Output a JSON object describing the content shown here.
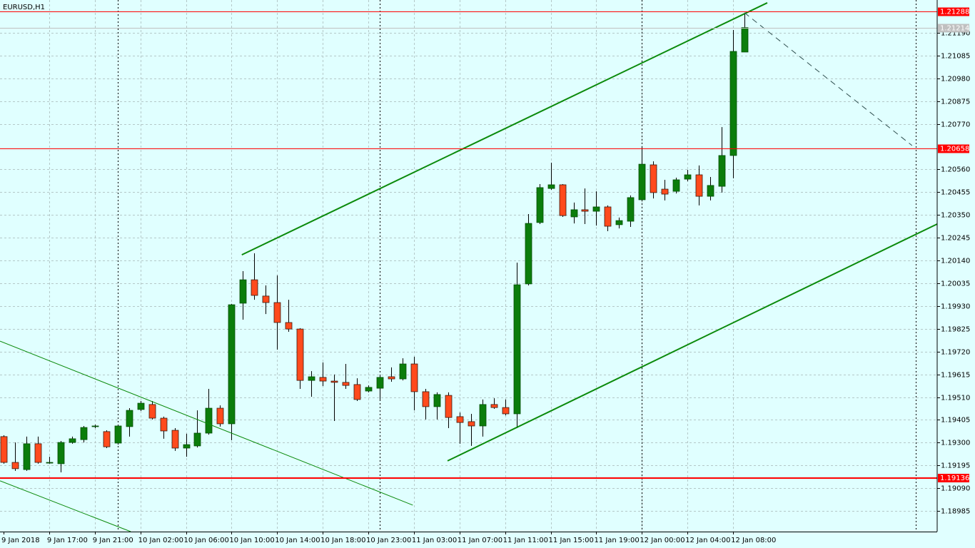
{
  "chart_data": {
    "type": "candlestick",
    "title": "EURUSD,H1",
    "categories": [
      "9 Jan 2018",
      null,
      null,
      null,
      "9 Jan 17:00",
      null,
      null,
      null,
      "9 Jan 21:00",
      null,
      null,
      null,
      "10 Jan 02:00",
      null,
      null,
      null,
      "10 Jan 06:00",
      null,
      null,
      null,
      "10 Jan 10:00",
      null,
      null,
      null,
      "10 Jan 14:00",
      null,
      null,
      null,
      "10 Jan 18:00",
      null,
      null,
      null,
      "10 Jan 23:00",
      null,
      null,
      null,
      "11 Jan 03:00",
      null,
      null,
      null,
      "11 Jan 07:00",
      null,
      null,
      null,
      "11 Jan 11:00",
      null,
      null,
      null,
      "11 Jan 15:00",
      null,
      null,
      null,
      "11 Jan 19:00",
      null,
      null,
      null,
      "12 Jan 00:00",
      null,
      null,
      null,
      "12 Jan 04:00",
      null,
      null,
      null,
      "12 Jan 08:00",
      null
    ],
    "open": [
      1.19328,
      1.19209,
      1.19176,
      1.19295,
      1.19209,
      1.19203,
      1.19301,
      1.19314,
      1.19374,
      1.19351,
      1.19298,
      1.19374,
      1.19453,
      1.19476,
      1.19413,
      1.19357,
      1.19275,
      1.19285,
      1.19344,
      1.19459,
      1.19387,
      1.19943,
      1.20051,
      1.19976,
      1.19946,
      1.19854,
      1.19824,
      1.19587,
      1.19601,
      1.19584,
      1.19578,
      1.19568,
      1.19538,
      1.19551,
      1.19604,
      1.19594,
      1.19663,
      1.19535,
      1.19466,
      1.19518,
      1.1942,
      1.19397,
      1.19377,
      1.19476,
      1.19462,
      1.19433,
      1.20032,
      1.20315,
      1.20472,
      1.20489,
      1.20341,
      1.20374,
      1.20367,
      1.20387,
      1.20305,
      1.20321,
      1.2042,
      1.20581,
      1.20469,
      1.20459,
      1.20515,
      1.20535,
      1.20436,
      1.20482,
      1.20624,
      1.21101
    ],
    "high": [
      1.19334,
      1.19301,
      1.19328,
      1.19328,
      1.19235,
      1.19308,
      1.19328,
      1.19377,
      1.19383,
      1.19357,
      1.19383,
      1.19459,
      1.19492,
      1.19492,
      1.1942,
      1.19367,
      1.19341,
      1.19449,
      1.19548,
      1.19472,
      1.1994,
      1.20091,
      1.20173,
      1.20025,
      1.20071,
      1.19959,
      1.19828,
      1.1963,
      1.1967,
      1.19614,
      1.19663,
      1.19597,
      1.19564,
      1.19614,
      1.19647,
      1.19689,
      1.19696,
      1.19548,
      1.19532,
      1.19532,
      1.19439,
      1.19433,
      1.19499,
      1.19505,
      1.19499,
      1.2013,
      1.20354,
      1.20492,
      1.20591,
      1.20492,
      1.20407,
      1.20472,
      1.20459,
      1.20394,
      1.20338,
      1.2044,
      1.20667,
      1.20597,
      1.20512,
      1.20522,
      1.20558,
      1.20578,
      1.20525,
      1.20755,
      1.21203,
      1.21282
    ],
    "low": [
      1.19203,
      1.1917,
      1.1917,
      1.19203,
      1.19203,
      1.19163,
      1.19295,
      1.19301,
      1.19367,
      1.19275,
      1.19291,
      1.19328,
      1.19446,
      1.19407,
      1.19318,
      1.19262,
      1.19235,
      1.19278,
      1.19337,
      1.19374,
      1.19311,
      1.19867,
      1.19959,
      1.19893,
      1.19729,
      1.19811,
      1.19548,
      1.19512,
      1.19561,
      1.194,
      1.19548,
      1.19492,
      1.19532,
      1.19499,
      1.19581,
      1.19587,
      1.19449,
      1.19407,
      1.19407,
      1.19367,
      1.19295,
      1.19285,
      1.19328,
      1.19456,
      1.19426,
      1.19367,
      1.20025,
      1.20308,
      1.20466,
      1.20341,
      1.20311,
      1.20308,
      1.20301,
      1.20275,
      1.20288,
      1.20295,
      1.20413,
      1.20426,
      1.20417,
      1.20449,
      1.20505,
      1.20394,
      1.20417,
      1.20453,
      1.20519,
      1.21101
    ],
    "close": [
      1.19209,
      1.1918,
      1.19295,
      1.19209,
      1.19209,
      1.19301,
      1.19318,
      1.1937,
      1.19377,
      1.19281,
      1.19377,
      1.19449,
      1.19482,
      1.19413,
      1.19354,
      1.19275,
      1.19291,
      1.19344,
      1.19459,
      1.19387,
      1.19936,
      1.20051,
      1.19979,
      1.19946,
      1.19854,
      1.19824,
      1.19587,
      1.19604,
      1.19584,
      1.19578,
      1.19564,
      1.19499,
      1.19555,
      1.19601,
      1.19594,
      1.19663,
      1.19535,
      1.19466,
      1.19522,
      1.19416,
      1.19393,
      1.19377,
      1.19476,
      1.19462,
      1.19433,
      1.20028,
      1.20311,
      1.20476,
      1.20489,
      1.20347,
      1.20374,
      1.20367,
      1.20387,
      1.20298,
      1.20324,
      1.2043,
      1.20584,
      1.20453,
      1.20446,
      1.20512,
      1.20535,
      1.20436,
      1.20486,
      1.20624,
      1.21104,
      1.21214
    ],
    "up_color": "#0b7d0b",
    "down_color": "#ff4a1c",
    "ylim": [
      1.1889,
      1.21341
    ],
    "yticks": [
      {
        "value": 1.2119,
        "label": "1.21190"
      },
      1.21085,
      {
        "value": 1.2098,
        "label": "1.20980"
      },
      1.20875,
      {
        "value": 1.2077,
        "label": "1.20770"
      },
      {
        "value": 1.2056,
        "label": "1.20560"
      },
      1.20455,
      {
        "value": 1.2035,
        "label": "1.20350"
      },
      1.20245,
      {
        "value": 1.2014,
        "label": "1.20140"
      },
      1.20035,
      {
        "value": 1.1993,
        "label": "1.19930"
      },
      1.19825,
      {
        "value": 1.1972,
        "label": "1.19720"
      },
      1.19615,
      {
        "value": 1.1951,
        "label": "1.19510"
      },
      1.19405,
      {
        "value": 1.193,
        "label": "1.19300"
      },
      1.19195,
      {
        "value": 1.1909,
        "label": "1.19090"
      },
      1.18985
    ],
    "grid": true,
    "hlines": [
      {
        "value": 1.21288,
        "color": "#ff0000",
        "width": 1
      },
      {
        "value": 1.21214,
        "color": "#c0c0c0",
        "width": 1
      },
      {
        "value": 1.20658,
        "color": "#ff0000",
        "width": 1
      },
      {
        "value": 1.19136,
        "color": "#ff0000",
        "width": 2
      }
    ],
    "trendlines": [
      {
        "color": "#0b8a0b",
        "width": 2,
        "dash": false,
        "points": [
          [
            20.9,
            1.20166
          ],
          [
            67.0,
            1.21328
          ]
        ]
      },
      {
        "color": "#0b8a0b",
        "width": 2,
        "dash": false,
        "points": [
          [
            38.95,
            1.19216
          ],
          [
            81.9,
            1.20308
          ]
        ]
      },
      {
        "color": "#0b8a0b",
        "width": 1,
        "dash": false,
        "points": [
          [
            -0.31,
            1.19768
          ],
          [
            35.9,
            1.19012
          ]
        ]
      },
      {
        "color": "#0b8a0b",
        "width": 1,
        "dash": false,
        "points": [
          [
            -0.31,
            1.19124
          ],
          [
            11.15,
            1.1889
          ]
        ]
      },
      {
        "color": "#2f4f4f",
        "width": 1,
        "dash": true,
        "points": [
          [
            65.0,
            1.21282
          ],
          [
            79.7,
            1.2067
          ]
        ]
      }
    ],
    "period_separators": [
      10,
      33,
      56,
      80
    ]
  }
}
